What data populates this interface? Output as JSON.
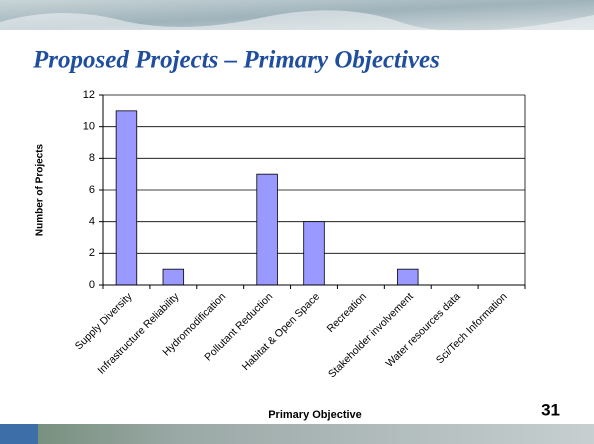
{
  "slide_title": "Proposed Projects – Primary Objectives",
  "page_number": "31",
  "chart_data": {
    "type": "bar",
    "x_label": "Primary Objective",
    "y_label": "Number of Projects",
    "categories": [
      "Supply Diversity",
      "Infrastructure Reliability",
      "Hydromodification",
      "Pollutant Reduction",
      "Habitat & Open Space",
      "Recreation",
      "Stakeholder involvement",
      "Water resources data",
      "Sci/Tech Information"
    ],
    "values": [
      11,
      1,
      0,
      7,
      4,
      0,
      1,
      0,
      0
    ],
    "color": "#9999ff",
    "ylim": [
      0,
      12
    ],
    "yticks": [
      0,
      2,
      4,
      6,
      8,
      10,
      12
    ],
    "grid": true
  }
}
